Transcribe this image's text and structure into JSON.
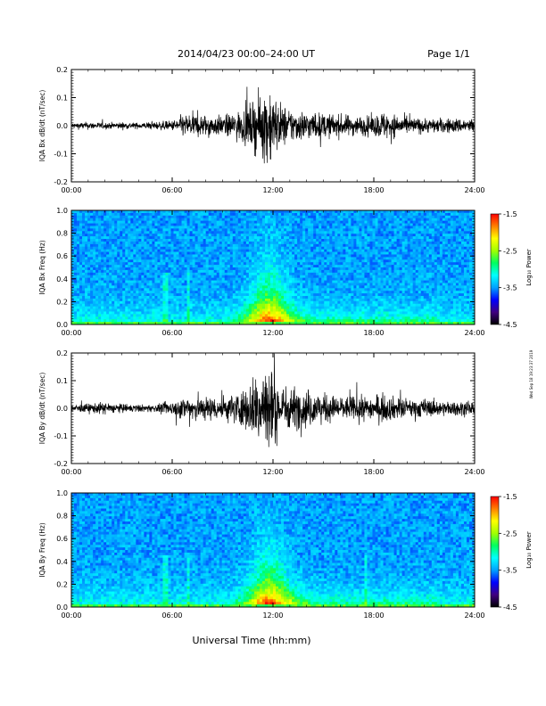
{
  "header": {
    "title": "2014/04/23  00:00–24:00 UT",
    "page": "Page 1/1"
  },
  "footer": {
    "xlabel": "Universal Time (hh:mm)",
    "side_stamp": "Wed Sep 18 19:23:37 2019"
  },
  "colors": {
    "trace": "#000000",
    "colormap": [
      "#000000",
      "#400080",
      "#0000ff",
      "#00a0ff",
      "#00ffff",
      "#00ff60",
      "#a0ff00",
      "#ffff00",
      "#ff8000",
      "#ff0000"
    ]
  },
  "chart_data": [
    {
      "id": "bx-trace",
      "type": "line",
      "ylabel": "IQA Bx dB/dt (nT/sec)",
      "x_ticks": [
        "00:00",
        "06:00",
        "12:00",
        "18:00",
        "24:00"
      ],
      "y_ticks": [
        "0.2",
        "0.1",
        "0.0",
        "-0.1",
        "-0.2"
      ],
      "ylim": [
        -0.2,
        0.2
      ],
      "xlim_hours": [
        0,
        24
      ],
      "envelope": {
        "hours": [
          0,
          1,
          2,
          3,
          4,
          5,
          6,
          6.5,
          7,
          8,
          9,
          10,
          10.5,
          11,
          11.5,
          11.8,
          12,
          12.5,
          13,
          14,
          15,
          16,
          17,
          18,
          18.5,
          19,
          20,
          21,
          22,
          23,
          24
        ],
        "amplitude": [
          0.012,
          0.015,
          0.013,
          0.014,
          0.012,
          0.016,
          0.02,
          0.04,
          0.05,
          0.045,
          0.04,
          0.06,
          0.08,
          0.11,
          0.14,
          0.18,
          0.13,
          0.09,
          0.07,
          0.06,
          0.05,
          0.045,
          0.04,
          0.04,
          0.06,
          0.05,
          0.035,
          0.03,
          0.03,
          0.03,
          0.03
        ]
      }
    },
    {
      "id": "bx-spectrogram",
      "type": "heatmap",
      "ylabel": "IQA Bx Freq (Hz)",
      "x_ticks": [
        "00:00",
        "06:00",
        "12:00",
        "18:00",
        "24:00"
      ],
      "y_ticks": [
        "1.0",
        "0.8",
        "0.6",
        "0.4",
        "0.2",
        "0.0"
      ],
      "ylim": [
        0,
        1.0
      ],
      "colorbar": {
        "label": "Log₁₀ Power",
        "ticks": [
          "-1.5",
          "-2.5",
          "-3.5",
          "-4.5"
        ],
        "range": [
          -4.5,
          -1.5
        ]
      },
      "peak_hour": 11.8,
      "lines_hours": [
        5.6,
        7.0
      ]
    },
    {
      "id": "by-trace",
      "type": "line",
      "ylabel": "IQA By dB/dt (nT/sec)",
      "x_ticks": [
        "00:00",
        "06:00",
        "12:00",
        "18:00",
        "24:00"
      ],
      "y_ticks": [
        "0.2",
        "0.1",
        "0.0",
        "-0.1",
        "-0.2"
      ],
      "ylim": [
        -0.2,
        0.2
      ],
      "xlim_hours": [
        0,
        24
      ],
      "envelope": {
        "hours": [
          0,
          1,
          2,
          3,
          4,
          5,
          6,
          6.5,
          7,
          8,
          9,
          10,
          10.5,
          11,
          11.5,
          11.8,
          12,
          12.5,
          13,
          14,
          15,
          16,
          17,
          18,
          18.5,
          19,
          20,
          21,
          22,
          23,
          24
        ],
        "amplitude": [
          0.015,
          0.02,
          0.025,
          0.018,
          0.015,
          0.015,
          0.03,
          0.04,
          0.06,
          0.05,
          0.05,
          0.07,
          0.09,
          0.15,
          0.2,
          0.2,
          0.14,
          0.1,
          0.09,
          0.08,
          0.06,
          0.05,
          0.05,
          0.05,
          0.06,
          0.05,
          0.04,
          0.04,
          0.03,
          0.03,
          0.03
        ]
      }
    },
    {
      "id": "by-spectrogram",
      "type": "heatmap",
      "ylabel": "IQA By Freq (Hz)",
      "x_ticks": [
        "00:00",
        "06:00",
        "12:00",
        "18:00",
        "24:00"
      ],
      "y_ticks": [
        "1.0",
        "0.8",
        "0.6",
        "0.4",
        "0.2",
        "0.0"
      ],
      "ylim": [
        0,
        1.0
      ],
      "colorbar": {
        "label": "Log₁₀ Power",
        "ticks": [
          "-1.5",
          "-2.5",
          "-3.5",
          "-4.5"
        ],
        "range": [
          -4.5,
          -1.5
        ]
      },
      "peak_hour": 11.8,
      "lines_hours": [
        5.6,
        7.0,
        17.5
      ]
    }
  ]
}
